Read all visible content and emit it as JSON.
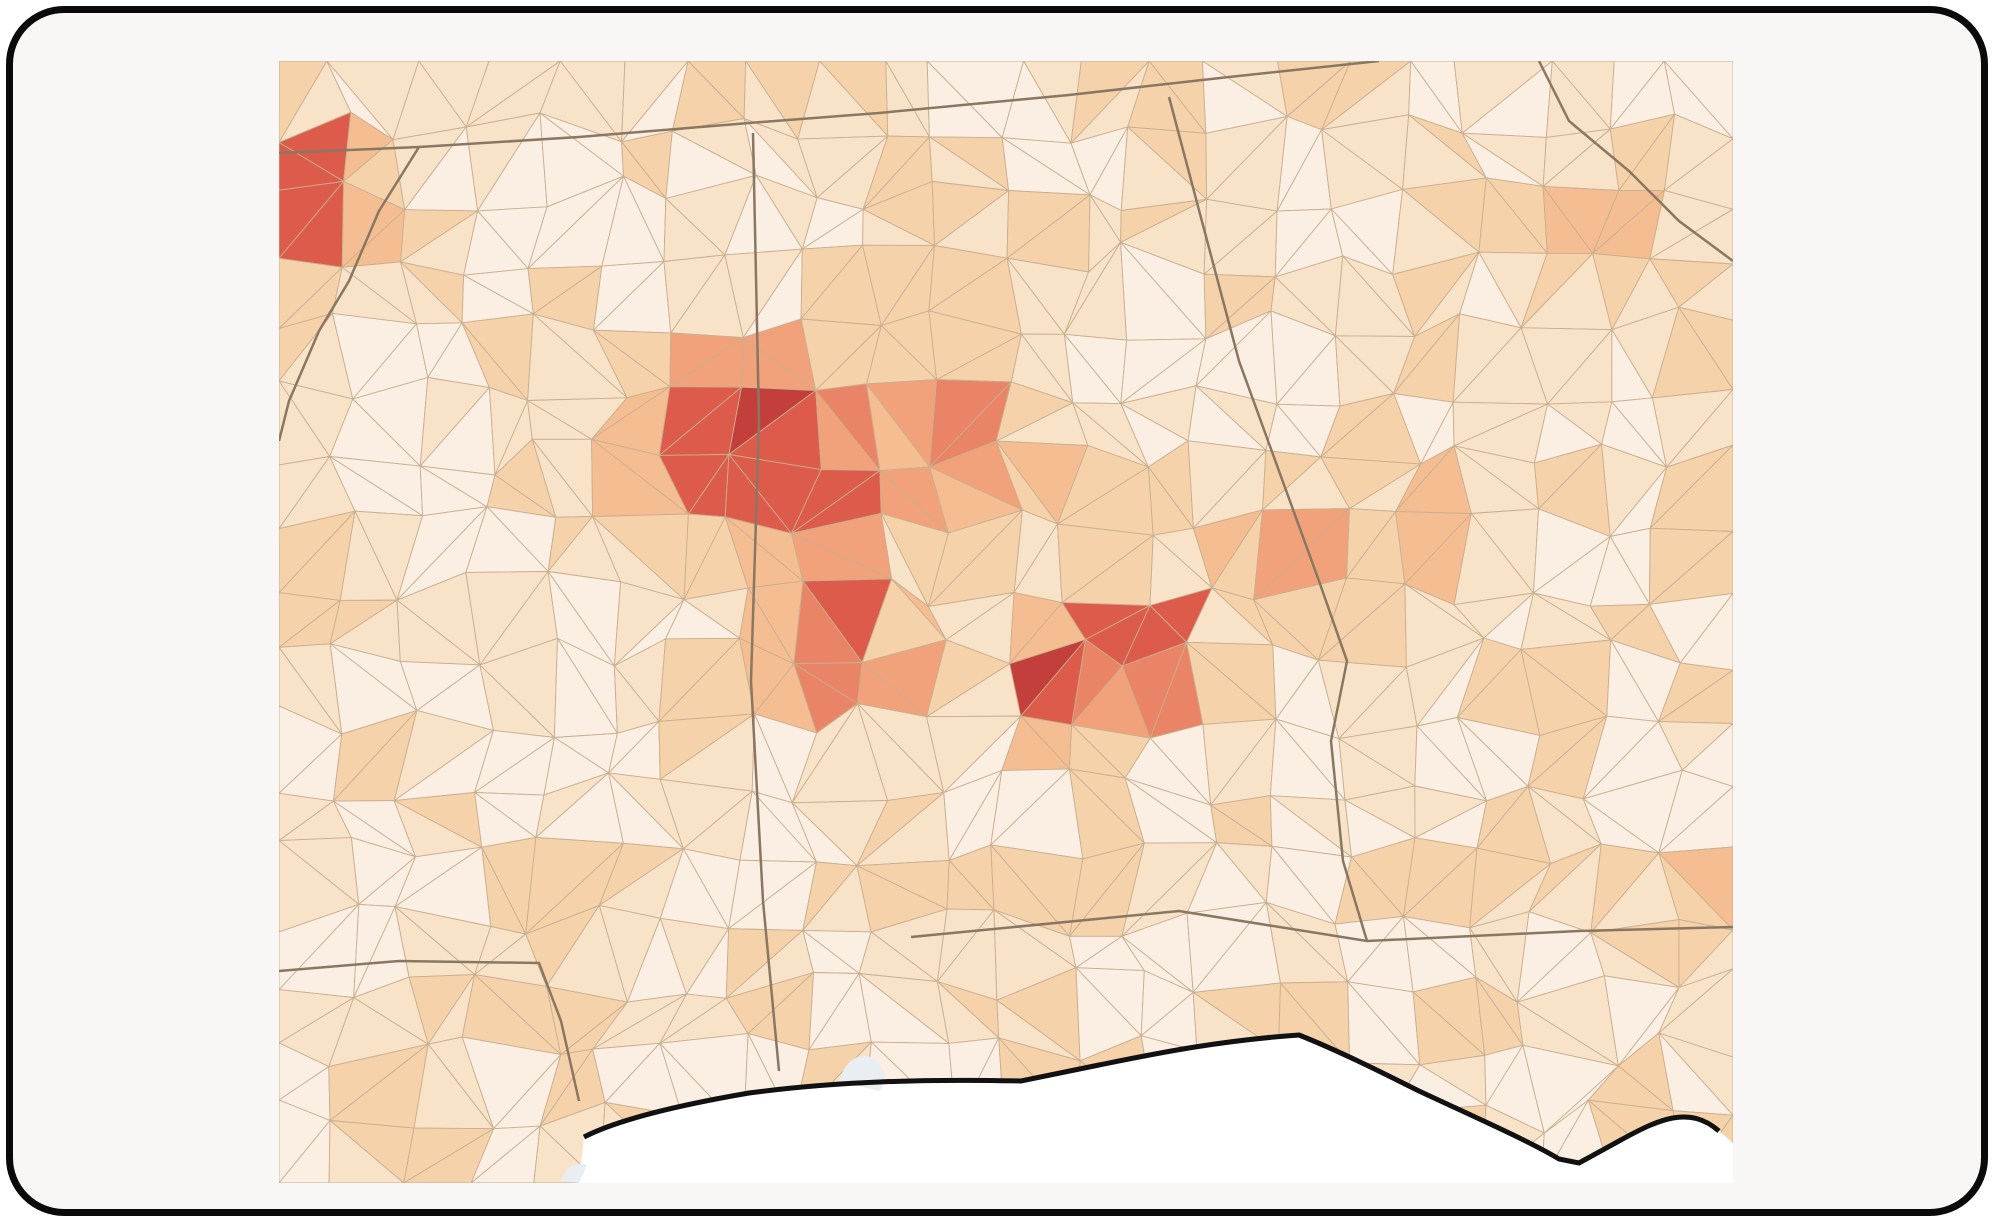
{
  "map": {
    "type": "choropleth",
    "unit": "county",
    "colors": {
      "frame_background": "#f8f7f5",
      "frame_border": "#0a0a0a",
      "water": "#e8eef2",
      "gulf_fill": "#ffffff",
      "county_border": "#c9ae8f",
      "state_border": "#8a7762"
    },
    "color_scale": [
      "#fbeee2",
      "#f8e2c8",
      "#f6d2aa",
      "#f5be92",
      "#f2a27b",
      "#ea8466",
      "#dc5b4b",
      "#c23f3b",
      "#943337"
    ]
  }
}
